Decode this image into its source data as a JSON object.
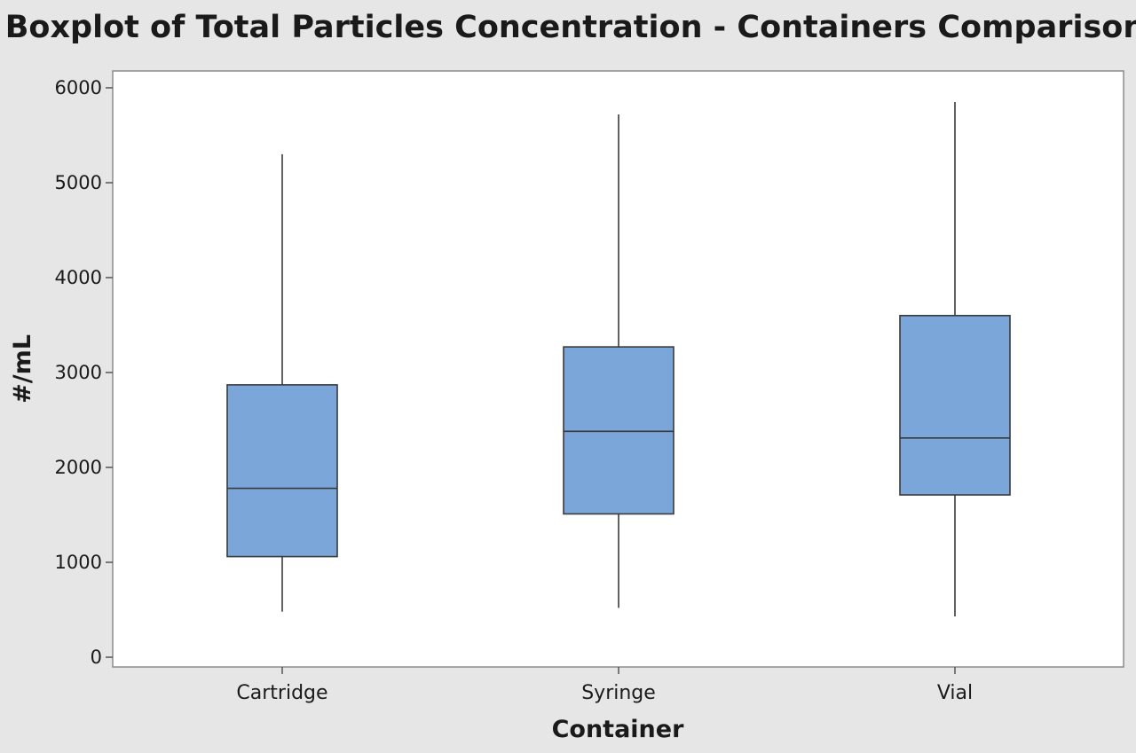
{
  "chart_data": {
    "type": "box",
    "title": "Boxplot of Total Particles Concentration - Containers Comparison",
    "xlabel": "Container",
    "ylabel": "#/mL",
    "ylim": [
      0,
      6000
    ],
    "yticks": [
      0,
      1000,
      2000,
      3000,
      4000,
      5000,
      6000
    ],
    "grid": false,
    "categories": [
      "Cartridge",
      "Syringe",
      "Vial"
    ],
    "boxes": [
      {
        "category": "Cartridge",
        "min": 480,
        "q1": 1060,
        "median": 1780,
        "q3": 2870,
        "max": 5300
      },
      {
        "category": "Syringe",
        "min": 520,
        "q1": 1510,
        "median": 2380,
        "q3": 3270,
        "max": 5720
      },
      {
        "category": "Vial",
        "min": 430,
        "q1": 1710,
        "median": 2310,
        "q3": 3600,
        "max": 5850
      }
    ],
    "colors": {
      "box_fill": "#7ba6da",
      "box_stroke": "#3a3a3a",
      "plot_background": "#ffffff",
      "figure_background": "#e6e6e6"
    }
  }
}
